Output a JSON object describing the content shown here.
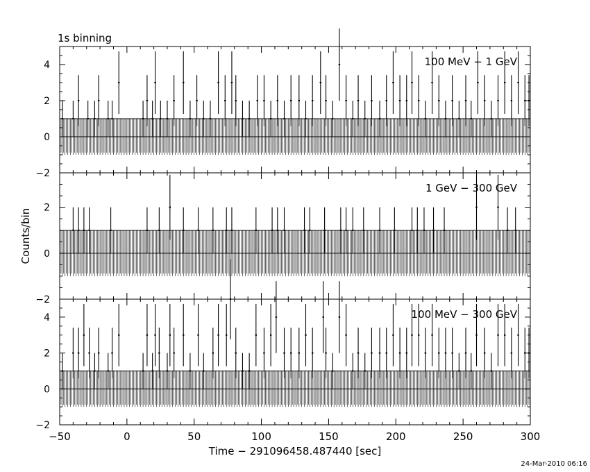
{
  "header_label": "1s binning",
  "footer_date": "24-Mar-2010 06:16",
  "axes": {
    "xlabel": "Time − 291096458.487440 [sec]",
    "ylabel": "Counts/bin",
    "xlim": [
      -50,
      300
    ],
    "x_ticks": [
      "−50",
      "0",
      "50",
      "100",
      "150",
      "200",
      "250",
      "300"
    ]
  },
  "chart_data": [
    {
      "type": "line",
      "panel_label": "100 MeV − 1 GeV",
      "ylim": [
        -2,
        5
      ],
      "y_ticks": [
        "−2",
        "0",
        "2",
        "4"
      ],
      "baseline_count": 0,
      "error_bar_half_width": 1,
      "events": [
        {
          "x": -48,
          "y": 1
        },
        {
          "x": -40,
          "y": 1
        },
        {
          "x": -36,
          "y": 2
        },
        {
          "x": -29,
          "y": 1
        },
        {
          "x": -24,
          "y": 1
        },
        {
          "x": -21,
          "y": 2
        },
        {
          "x": -14,
          "y": 1
        },
        {
          "x": -11,
          "y": 1
        },
        {
          "x": -6,
          "y": 3
        },
        {
          "x": 12,
          "y": 1
        },
        {
          "x": 15,
          "y": 2
        },
        {
          "x": 19,
          "y": 1
        },
        {
          "x": 21,
          "y": 3
        },
        {
          "x": 25,
          "y": 1
        },
        {
          "x": 30,
          "y": 1
        },
        {
          "x": 35,
          "y": 2
        },
        {
          "x": 42,
          "y": 3
        },
        {
          "x": 47,
          "y": 1
        },
        {
          "x": 52,
          "y": 2
        },
        {
          "x": 57,
          "y": 1
        },
        {
          "x": 62,
          "y": 1
        },
        {
          "x": 68,
          "y": 3
        },
        {
          "x": 73,
          "y": 2
        },
        {
          "x": 78,
          "y": 3
        },
        {
          "x": 81,
          "y": 2
        },
        {
          "x": 86,
          "y": 1
        },
        {
          "x": 91,
          "y": 1
        },
        {
          "x": 97,
          "y": 2
        },
        {
          "x": 102,
          "y": 2
        },
        {
          "x": 107,
          "y": 1
        },
        {
          "x": 112,
          "y": 2
        },
        {
          "x": 117,
          "y": 1
        },
        {
          "x": 122,
          "y": 2
        },
        {
          "x": 128,
          "y": 2
        },
        {
          "x": 133,
          "y": 1
        },
        {
          "x": 138,
          "y": 2
        },
        {
          "x": 144,
          "y": 3
        },
        {
          "x": 148,
          "y": 2
        },
        {
          "x": 153,
          "y": 1
        },
        {
          "x": 158,
          "y": 4
        },
        {
          "x": 163,
          "y": 2
        },
        {
          "x": 168,
          "y": 1
        },
        {
          "x": 172,
          "y": 2
        },
        {
          "x": 177,
          "y": 1
        },
        {
          "x": 182,
          "y": 2
        },
        {
          "x": 188,
          "y": 1
        },
        {
          "x": 193,
          "y": 2
        },
        {
          "x": 198,
          "y": 3
        },
        {
          "x": 203,
          "y": 2
        },
        {
          "x": 208,
          "y": 2
        },
        {
          "x": 212,
          "y": 3
        },
        {
          "x": 217,
          "y": 2
        },
        {
          "x": 222,
          "y": 1
        },
        {
          "x": 227,
          "y": 3
        },
        {
          "x": 232,
          "y": 2
        },
        {
          "x": 237,
          "y": 1
        },
        {
          "x": 242,
          "y": 2
        },
        {
          "x": 247,
          "y": 1
        },
        {
          "x": 252,
          "y": 2
        },
        {
          "x": 256,
          "y": 1
        },
        {
          "x": 261,
          "y": 3
        },
        {
          "x": 266,
          "y": 2
        },
        {
          "x": 271,
          "y": 1
        },
        {
          "x": 276,
          "y": 2
        },
        {
          "x": 281,
          "y": 3
        },
        {
          "x": 286,
          "y": 2
        },
        {
          "x": 291,
          "y": 3
        },
        {
          "x": 296,
          "y": 2
        },
        {
          "x": 299,
          "y": 2
        }
      ]
    },
    {
      "type": "line",
      "panel_label": "1 GeV − 300 GeV",
      "ylim": [
        -2,
        3.5
      ],
      "y_ticks": [
        "−2",
        "0",
        "2"
      ],
      "baseline_count": 0,
      "error_bar_half_width": 1,
      "events": [
        {
          "x": -40,
          "y": 1
        },
        {
          "x": -36,
          "y": 1
        },
        {
          "x": -32,
          "y": 1
        },
        {
          "x": -28,
          "y": 1
        },
        {
          "x": -12,
          "y": 1
        },
        {
          "x": 15,
          "y": 1
        },
        {
          "x": 24,
          "y": 1
        },
        {
          "x": 32,
          "y": 2
        },
        {
          "x": 42,
          "y": 1
        },
        {
          "x": 53,
          "y": 1
        },
        {
          "x": 64,
          "y": 1
        },
        {
          "x": 74,
          "y": 1
        },
        {
          "x": 78,
          "y": 1
        },
        {
          "x": 96,
          "y": 1
        },
        {
          "x": 108,
          "y": 1
        },
        {
          "x": 112,
          "y": 1
        },
        {
          "x": 117,
          "y": 1
        },
        {
          "x": 132,
          "y": 1
        },
        {
          "x": 136,
          "y": 1
        },
        {
          "x": 147,
          "y": 1
        },
        {
          "x": 159,
          "y": 1
        },
        {
          "x": 163,
          "y": 1
        },
        {
          "x": 168,
          "y": 1
        },
        {
          "x": 176,
          "y": 1
        },
        {
          "x": 188,
          "y": 1
        },
        {
          "x": 199,
          "y": 1
        },
        {
          "x": 212,
          "y": 1
        },
        {
          "x": 216,
          "y": 1
        },
        {
          "x": 221,
          "y": 1
        },
        {
          "x": 228,
          "y": 1
        },
        {
          "x": 236,
          "y": 1
        },
        {
          "x": 260,
          "y": 2
        },
        {
          "x": 276,
          "y": 2
        },
        {
          "x": 283,
          "y": 1
        },
        {
          "x": 289,
          "y": 1
        }
      ]
    },
    {
      "type": "line",
      "panel_label": "100 MeV − 300 GeV",
      "ylim": [
        -2,
        5
      ],
      "y_ticks": [
        "−2",
        "0",
        "2",
        "4"
      ],
      "baseline_count": 0,
      "error_bar_half_width": 1,
      "events": [
        {
          "x": -48,
          "y": 1
        },
        {
          "x": -40,
          "y": 2
        },
        {
          "x": -36,
          "y": 2
        },
        {
          "x": -32,
          "y": 3
        },
        {
          "x": -28,
          "y": 2
        },
        {
          "x": -24,
          "y": 1
        },
        {
          "x": -21,
          "y": 2
        },
        {
          "x": -14,
          "y": 1
        },
        {
          "x": -11,
          "y": 2
        },
        {
          "x": -6,
          "y": 3
        },
        {
          "x": 12,
          "y": 1
        },
        {
          "x": 15,
          "y": 3
        },
        {
          "x": 19,
          "y": 1
        },
        {
          "x": 21,
          "y": 3
        },
        {
          "x": 24,
          "y": 2
        },
        {
          "x": 30,
          "y": 1
        },
        {
          "x": 32,
          "y": 3
        },
        {
          "x": 35,
          "y": 2
        },
        {
          "x": 42,
          "y": 3
        },
        {
          "x": 47,
          "y": 1
        },
        {
          "x": 53,
          "y": 3
        },
        {
          "x": 57,
          "y": 1
        },
        {
          "x": 64,
          "y": 2
        },
        {
          "x": 68,
          "y": 3
        },
        {
          "x": 74,
          "y": 3
        },
        {
          "x": 77,
          "y": 5
        },
        {
          "x": 81,
          "y": 2
        },
        {
          "x": 86,
          "y": 1
        },
        {
          "x": 91,
          "y": 1
        },
        {
          "x": 96,
          "y": 3
        },
        {
          "x": 102,
          "y": 2
        },
        {
          "x": 107,
          "y": 3
        },
        {
          "x": 111,
          "y": 4
        },
        {
          "x": 117,
          "y": 2
        },
        {
          "x": 122,
          "y": 2
        },
        {
          "x": 128,
          "y": 2
        },
        {
          "x": 133,
          "y": 3
        },
        {
          "x": 138,
          "y": 2
        },
        {
          "x": 146,
          "y": 4
        },
        {
          "x": 148,
          "y": 2
        },
        {
          "x": 153,
          "y": 1
        },
        {
          "x": 158,
          "y": 4
        },
        {
          "x": 163,
          "y": 3
        },
        {
          "x": 168,
          "y": 1
        },
        {
          "x": 172,
          "y": 2
        },
        {
          "x": 177,
          "y": 1
        },
        {
          "x": 182,
          "y": 2
        },
        {
          "x": 188,
          "y": 2
        },
        {
          "x": 193,
          "y": 2
        },
        {
          "x": 198,
          "y": 3
        },
        {
          "x": 203,
          "y": 2
        },
        {
          "x": 208,
          "y": 2
        },
        {
          "x": 212,
          "y": 3
        },
        {
          "x": 217,
          "y": 3
        },
        {
          "x": 222,
          "y": 2
        },
        {
          "x": 227,
          "y": 3
        },
        {
          "x": 232,
          "y": 2
        },
        {
          "x": 237,
          "y": 2
        },
        {
          "x": 242,
          "y": 2
        },
        {
          "x": 247,
          "y": 1
        },
        {
          "x": 252,
          "y": 2
        },
        {
          "x": 256,
          "y": 1
        },
        {
          "x": 260,
          "y": 3
        },
        {
          "x": 266,
          "y": 2
        },
        {
          "x": 271,
          "y": 1
        },
        {
          "x": 276,
          "y": 3
        },
        {
          "x": 281,
          "y": 3
        },
        {
          "x": 286,
          "y": 2
        },
        {
          "x": 291,
          "y": 3
        },
        {
          "x": 296,
          "y": 2
        },
        {
          "x": 299,
          "y": 2
        }
      ]
    }
  ]
}
